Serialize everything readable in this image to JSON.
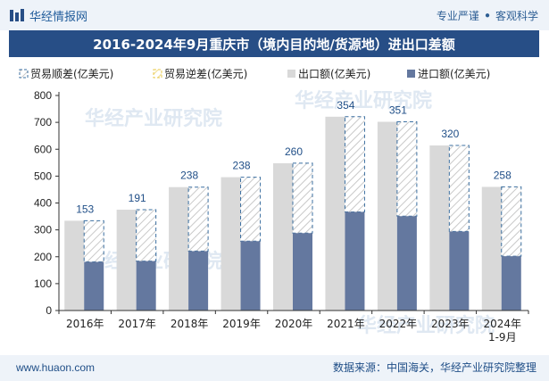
{
  "header": {
    "brand": "华经情报网",
    "tags": [
      "专业严谨",
      "客观科学"
    ]
  },
  "title": "2016-2024年9月重庆市（境内目的地/货源地）进出口差额",
  "footer": {
    "site": "www.huaon.com",
    "source": "数据来源：中国海关，华经产业研究院整理"
  },
  "watermark": [
    "华经产业研究院",
    "www.huaon.com"
  ],
  "colors": {
    "export": "#d9d9d9",
    "import": "#64789f",
    "surplus_stroke": "#3b6fa0",
    "deficit_stroke": "#e8c84a",
    "header_bg": "#274e86"
  },
  "chart_data": {
    "type": "bar",
    "categories": [
      "2016年",
      "2017年",
      "2018年",
      "2019年",
      "2020年",
      "2021年",
      "2022年",
      "2023年",
      "2024年\n1-9月"
    ],
    "series": [
      {
        "name": "贸易顺差(亿美元)",
        "values": [
          153,
          191,
          238,
          238,
          260,
          354,
          351,
          320,
          258
        ]
      },
      {
        "name": "贸易逆差(亿美元)",
        "values": [
          0,
          0,
          0,
          0,
          0,
          0,
          0,
          0,
          0
        ]
      },
      {
        "name": "出口额(亿美元)",
        "values": [
          334,
          375,
          459,
          496,
          548,
          721,
          702,
          614,
          460
        ]
      },
      {
        "name": "进口额(亿美元)",
        "values": [
          181,
          184,
          221,
          258,
          288,
          367,
          351,
          294,
          202
        ]
      }
    ],
    "data_labels": [
      "153",
      "191",
      "238",
      "238",
      "260",
      "354",
      "351",
      "320",
      "258"
    ],
    "ylim": [
      0,
      800
    ],
    "yticks": [
      0,
      100,
      200,
      300,
      400,
      500,
      600,
      700,
      800
    ],
    "legend_position": "top"
  }
}
